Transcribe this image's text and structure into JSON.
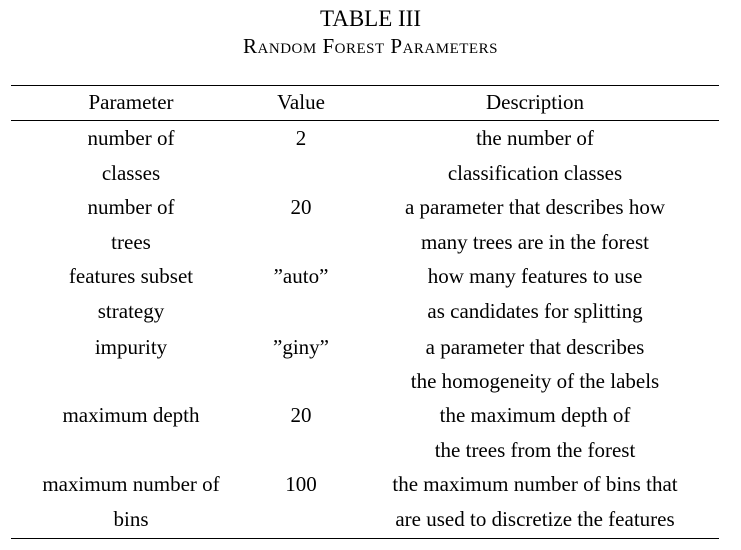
{
  "table": {
    "number": "TABLE III",
    "title": "Random Forest Parameters",
    "headers": [
      "Parameter",
      "Value",
      "Description"
    ],
    "rows": [
      {
        "parameter": [
          "number of",
          "classes"
        ],
        "value": "2",
        "description": [
          "the number of",
          "classification classes"
        ]
      },
      {
        "parameter": [
          "number of",
          "trees"
        ],
        "value": "20",
        "description": [
          "a parameter that describes how",
          "many trees are in the forest"
        ]
      },
      {
        "parameter": [
          "features subset",
          "strategy"
        ],
        "value": "”auto”",
        "description": [
          "how many features to use",
          "as candidates for splitting"
        ]
      },
      {
        "parameter": [
          "impurity"
        ],
        "value": "”giny”",
        "description": [
          "a parameter that describes",
          "the homogeneity of the labels"
        ]
      },
      {
        "parameter": [
          "maximum depth"
        ],
        "value": "20",
        "description": [
          "the maximum depth of",
          "the trees from the forest"
        ]
      },
      {
        "parameter": [
          "maximum number of",
          "bins"
        ],
        "value": "100",
        "description": [
          "the maximum number of bins that",
          "are used to discretize the features"
        ]
      }
    ]
  }
}
